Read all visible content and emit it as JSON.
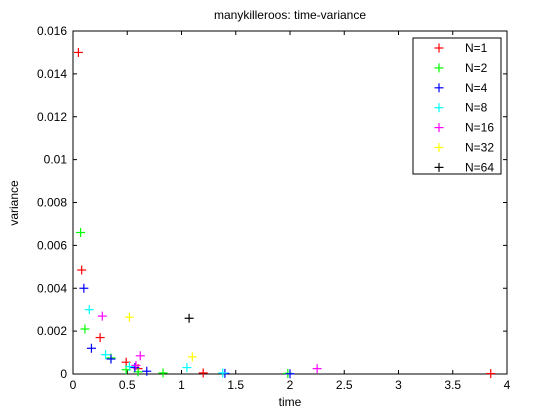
{
  "chart_data": {
    "type": "scatter",
    "title": "manykilleroos: time-variance",
    "xlabel": "time",
    "ylabel": "variance",
    "xlim": [
      0,
      4
    ],
    "ylim": [
      0,
      0.016
    ],
    "xticks": [
      0,
      0.5,
      1,
      1.5,
      2,
      2.5,
      3,
      3.5,
      4
    ],
    "xtick_labels": [
      "0",
      "0.5",
      "1",
      "1.5",
      "2",
      "2.5",
      "3",
      "3.5",
      "4"
    ],
    "yticks": [
      0,
      0.002,
      0.004,
      0.006,
      0.008,
      0.01,
      0.012,
      0.014,
      0.016
    ],
    "ytick_labels": [
      "0",
      "0.002",
      "0.004",
      "0.006",
      "0.008",
      "0.01",
      "0.012",
      "0.014",
      "0.016"
    ],
    "grid": false,
    "legend_position": "top-right",
    "marker": "plus",
    "series": [
      {
        "name": "N=1",
        "color": "#ff0000",
        "points": [
          [
            0.05,
            0.015
          ],
          [
            0.08,
            0.00485
          ],
          [
            0.25,
            0.0017
          ],
          [
            0.49,
            0.00055
          ],
          [
            0.6,
            0.00025
          ],
          [
            1.2,
            5e-05
          ],
          [
            3.85,
            2e-05
          ]
        ]
      },
      {
        "name": "N=2",
        "color": "#00ff00",
        "points": [
          [
            0.07,
            0.0066
          ],
          [
            0.11,
            0.0021
          ],
          [
            0.35,
            0.00075
          ],
          [
            0.49,
            0.0002
          ],
          [
            0.6,
            0.0001
          ],
          [
            0.83,
            5e-05
          ],
          [
            1.98,
            3e-05
          ]
        ]
      },
      {
        "name": "N=4",
        "color": "#0000ff",
        "points": [
          [
            0.1,
            0.004
          ],
          [
            0.17,
            0.0012
          ],
          [
            0.35,
            0.0007
          ],
          [
            0.57,
            0.0003
          ],
          [
            0.68,
            0.00013
          ],
          [
            1.4,
            3e-05
          ],
          [
            2.0,
            1e-05
          ]
        ]
      },
      {
        "name": "N=8",
        "color": "#00ffff",
        "points": [
          [
            0.15,
            0.003
          ],
          [
            0.3,
            0.0009
          ],
          [
            0.52,
            0.00035
          ],
          [
            1.05,
            0.0003
          ],
          [
            1.38,
            5e-05
          ]
        ]
      },
      {
        "name": "N=16",
        "color": "#ff00ff",
        "points": [
          [
            0.27,
            0.0027
          ],
          [
            0.62,
            0.00085
          ],
          [
            0.58,
            0.0004
          ],
          [
            2.25,
            0.00025
          ]
        ]
      },
      {
        "name": "N=32",
        "color": "#ffff00",
        "points": [
          [
            0.52,
            0.00265
          ],
          [
            1.1,
            0.0008
          ]
        ]
      },
      {
        "name": "N=64",
        "color": "#000000",
        "points": [
          [
            1.07,
            0.0026
          ]
        ]
      }
    ]
  }
}
